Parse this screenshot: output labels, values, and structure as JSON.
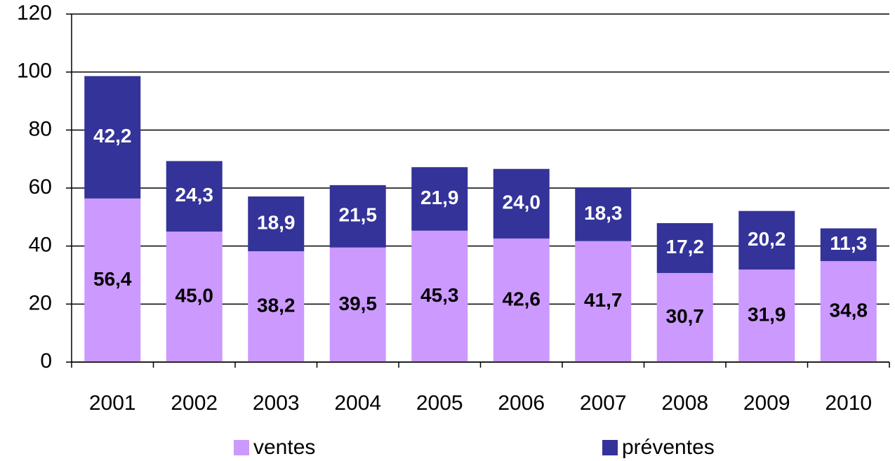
{
  "chart_data": {
    "type": "stacked-bar",
    "categories": [
      "2001",
      "2002",
      "2003",
      "2004",
      "2005",
      "2006",
      "2007",
      "2008",
      "2009",
      "2010"
    ],
    "series": [
      {
        "name": "ventes",
        "color": "#cc99ff",
        "label_color": "#000000",
        "values": [
          56.4,
          45.0,
          38.2,
          39.5,
          45.3,
          42.6,
          41.7,
          30.7,
          31.9,
          34.8
        ],
        "value_labels": [
          "56,4",
          "45,0",
          "38,2",
          "39,5",
          "45,3",
          "42,6",
          "41,7",
          "30,7",
          "31,9",
          "34,8"
        ]
      },
      {
        "name": "préventes",
        "color": "#333399",
        "label_color": "#ffffff",
        "values": [
          42.2,
          24.3,
          18.9,
          21.5,
          21.9,
          24.0,
          18.3,
          17.2,
          20.2,
          11.3
        ],
        "value_labels": [
          "42,2",
          "24,3",
          "18,9",
          "21,5",
          "21,9",
          "24,0",
          "18,3",
          "17,2",
          "20,2",
          "11,3"
        ]
      }
    ],
    "ylim": [
      0,
      120
    ],
    "yticks": [
      0,
      20,
      40,
      60,
      80,
      100,
      120
    ],
    "grid": true,
    "legend": "bottom"
  }
}
